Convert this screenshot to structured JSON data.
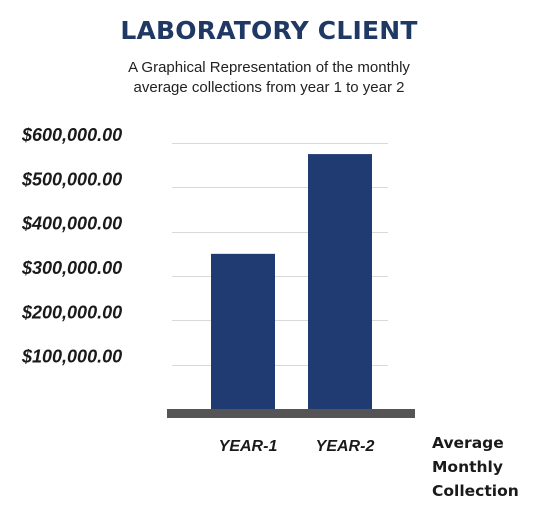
{
  "chart_data": {
    "type": "bar",
    "title": "LABORATORY CLIENT",
    "subtitle_lines": [
      "A Graphical Representation of the monthly",
      "average collections from year 1 to year 2"
    ],
    "categories": [
      "YEAR-1",
      "YEAR-2"
    ],
    "values": [
      350000,
      575000
    ],
    "ylim": [
      0,
      600000
    ],
    "yticks": [
      100000,
      200000,
      300000,
      400000,
      500000,
      600000
    ],
    "ytick_labels": [
      "$100,000.00",
      "$200,000.00",
      "$300,000.00",
      "$400,000.00",
      "$500,000.00",
      "$600,000.00"
    ],
    "xlabel_lines": [
      "Average",
      "Monthly",
      "Collection"
    ],
    "ylabel": "",
    "grid": true,
    "legend": "none"
  },
  "colors": {
    "bar": "#203a72",
    "baseline": "#555555",
    "grid": "#d9d9d9",
    "title": "#1f3864"
  }
}
